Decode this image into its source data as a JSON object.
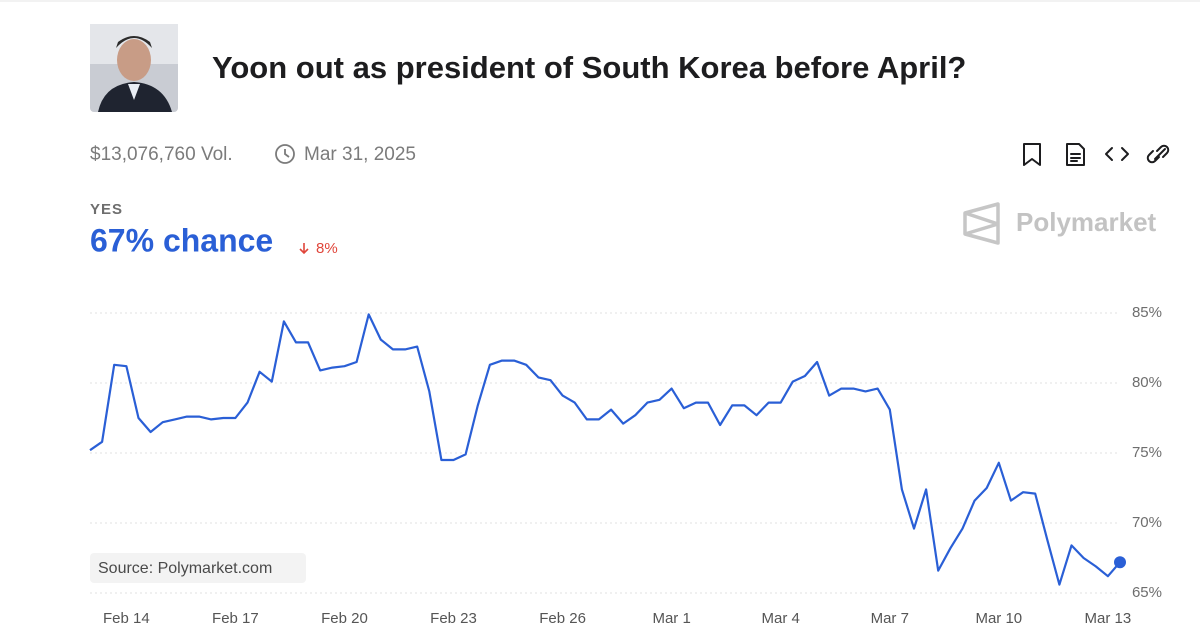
{
  "market": {
    "title": "Yoon out as president of South Korea before April?",
    "volume": "$13,076,760 Vol.",
    "end_date": "Mar 31, 2025",
    "outcome": "YES",
    "chance": "67% chance",
    "change": "8%",
    "brand": "Polymarket",
    "source": "Source: Polymarket.com"
  },
  "chart_data": {
    "type": "line",
    "color": "#2a5fd6",
    "grid": true,
    "categories": [
      null,
      null,
      null,
      "Feb 14",
      null,
      null,
      null,
      null,
      null,
      null,
      null,
      null,
      "Feb 17",
      null,
      null,
      null,
      null,
      null,
      null,
      null,
      null,
      "Feb 20",
      null,
      null,
      null,
      null,
      null,
      null,
      null,
      null,
      "Feb 23",
      null,
      null,
      null,
      null,
      null,
      null,
      null,
      null,
      "Feb 26",
      null,
      null,
      null,
      null,
      null,
      null,
      null,
      null,
      "Mar 1",
      null,
      null,
      null,
      null,
      null,
      null,
      null,
      null,
      "Mar 4",
      null,
      null,
      null,
      null,
      null,
      null,
      null,
      null,
      "Mar 7",
      null,
      null,
      null,
      null,
      null,
      null,
      null,
      null,
      "Mar 10",
      null,
      null,
      null,
      null,
      null,
      null,
      null,
      null,
      "Mar 13",
      null
    ],
    "values": [
      75.2,
      75.8,
      81.3,
      81.2,
      77.5,
      76.5,
      77.2,
      77.4,
      77.6,
      77.6,
      77.4,
      77.5,
      77.5,
      78.6,
      80.8,
      80.1,
      84.4,
      82.9,
      82.9,
      80.9,
      81.1,
      81.2,
      81.5,
      84.9,
      83.1,
      82.4,
      82.4,
      82.6,
      79.4,
      74.5,
      74.5,
      74.9,
      78.4,
      81.3,
      81.6,
      81.6,
      81.3,
      80.4,
      80.2,
      79.1,
      78.6,
      77.4,
      77.4,
      78.1,
      77.1,
      77.7,
      78.6,
      78.8,
      79.6,
      78.2,
      78.6,
      78.6,
      77.0,
      78.4,
      78.4,
      77.7,
      78.6,
      78.6,
      80.1,
      80.5,
      81.5,
      79.1,
      79.6,
      79.6,
      79.4,
      79.6,
      78.1,
      72.4,
      69.6,
      72.4,
      66.6,
      68.2,
      69.6,
      71.6,
      72.5,
      74.3,
      71.6,
      72.2,
      72.1,
      68.8,
      65.6,
      68.4,
      67.5,
      66.9,
      66.2,
      67.2
    ],
    "ylim": [
      64.5,
      86
    ],
    "yticks": [
      {
        "value": 65,
        "label": "65%"
      },
      {
        "value": 70,
        "label": "70%"
      },
      {
        "value": 75,
        "label": "75%"
      },
      {
        "value": 80,
        "label": "80%"
      },
      {
        "value": 85,
        "label": "85%"
      }
    ]
  }
}
